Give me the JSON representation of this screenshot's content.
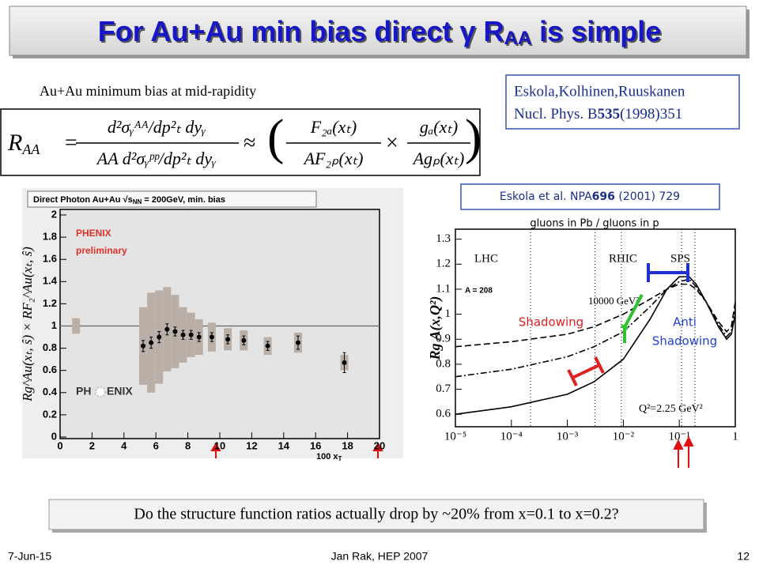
{
  "title": {
    "main": "For Au+Au min bias direct γ R",
    "sub": "AA",
    "end": " is simple"
  },
  "caption": "Au+Au minimum bias at mid-rapidity",
  "reference": {
    "line1": "Eskola,Kolhinen,Ruuskanen",
    "pre": "Nucl. Phys. B",
    "bold": "535",
    "post": "(1998)351"
  },
  "equation": {
    "lhs": "R",
    "lhs_sub": "AA",
    "eq": "=",
    "num1": "d²σᵧᴬᴬ/dp²ₜ dyᵧ",
    "den1": "AA d²σᵧᵖᵖ/dp²ₜ dyᵧ",
    "approx": "≈",
    "open": "(",
    "num2": "F₂ₐ(xₜ)",
    "den2": "AF₂ₚ(xₜ)",
    "times": "×",
    "num3": "gₐ(xₜ)",
    "den3": "Agₚ(xₜ)",
    "close": ")"
  },
  "chart_data": [
    {
      "type": "errorbar",
      "legend_title": "Direct Photon Au+Au √s",
      "legend_sub": "NN",
      "legend_end": " = 200GeV, min. bias",
      "labels": [
        "PHENIX",
        "preliminary"
      ],
      "logo": {
        "left": "PH",
        "right": "ENIX"
      },
      "ylabel": "Rg^Au(xₜ, ŝ) × RF₂^Au(xₜ, ŝ)",
      "xlabel": "100 x",
      "xlabel_sub": "T",
      "x": [
        5.2,
        5.7,
        6.2,
        6.7,
        7.2,
        7.7,
        8.2,
        8.7,
        9.5,
        10.5,
        11.5,
        13,
        14.9,
        17.8
      ],
      "values": [
        0.82,
        0.85,
        0.9,
        0.97,
        0.95,
        0.92,
        0.92,
        0.9,
        0.9,
        0.88,
        0.87,
        0.82,
        0.85,
        0.67
      ],
      "errors": [
        0.05,
        0.05,
        0.05,
        0.05,
        0.04,
        0.04,
        0.04,
        0.04,
        0.04,
        0.04,
        0.04,
        0.04,
        0.06,
        0.09
      ],
      "sys_errors": [
        0.35,
        0.45,
        0.42,
        0.38,
        0.33,
        0.25,
        0.2,
        0.16,
        0.13,
        0.1,
        0.09,
        0.08,
        0.09,
        0.07
      ],
      "norm": {
        "x": 1,
        "value": 1,
        "error": 0.07
      },
      "reference_line": 1,
      "color": "#000000",
      "box_color": "#b9afa7",
      "xlim": [
        0,
        20
      ],
      "ylim": [
        0,
        2
      ],
      "xticks": [
        0,
        2,
        4,
        6,
        8,
        10,
        12,
        14,
        16,
        18,
        20
      ],
      "yticks": [
        0,
        0.2,
        0.4,
        0.6,
        0.8,
        1,
        1.2,
        1.4,
        1.6,
        1.8,
        2
      ]
    },
    {
      "type": "line",
      "xscale": "log",
      "title": "gluons in Pb / gluons in p",
      "citation": {
        "pre": "Eskola et al. NPA",
        "bold": "696",
        "post": " (2001) 729"
      },
      "ylabel": "Rg A(x,Q²)",
      "annotations": [
        "LHC",
        "RHIC",
        "SPS",
        "A = 208",
        "10000 GeV²",
        "Q²=2.25 GeV²",
        "Shadowing",
        "Anti",
        "Shadowing"
      ],
      "x": [
        1e-05,
        0.0001,
        0.001,
        0.003,
        0.01,
        0.03,
        0.06,
        0.1,
        0.15,
        0.2,
        0.3,
        0.5,
        0.7,
        0.85,
        1
      ],
      "series": [
        {
          "color": "#000000",
          "dash": "solid",
          "values": [
            0.6,
            0.63,
            0.68,
            0.73,
            0.82,
            0.98,
            1.1,
            1.15,
            1.15,
            1.12,
            1.05,
            0.95,
            0.9,
            0.92,
            1.0
          ]
        },
        {
          "color": "#000000",
          "dash": "dashdot",
          "values": [
            0.75,
            0.78,
            0.83,
            0.87,
            0.93,
            1.03,
            1.1,
            1.13,
            1.14,
            1.11,
            1.05,
            0.96,
            0.91,
            0.93,
            1.02
          ]
        },
        {
          "color": "#000000",
          "dash": "dashed",
          "values": [
            0.87,
            0.89,
            0.92,
            0.95,
            1.0,
            1.06,
            1.1,
            1.12,
            1.12,
            1.1,
            1.05,
            0.97,
            0.93,
            0.95,
            1.05
          ]
        }
      ],
      "vlines": [
        0.00022,
        0.0031,
        0.0092,
        0.11,
        0.19
      ],
      "xlim": [
        1e-05,
        1
      ],
      "ylim": [
        0.55,
        1.34
      ],
      "xticks": [
        {
          "value": 1e-05,
          "label": "10⁻⁵"
        },
        {
          "value": 0.0001,
          "label": "10⁻⁴"
        },
        {
          "value": 0.001,
          "label": "10⁻³"
        },
        {
          "value": 0.01,
          "label": "10⁻²"
        },
        {
          "value": 0.1,
          "label": "10⁻¹"
        },
        1
      ],
      "yticks": [
        0.6,
        0.7,
        0.8,
        0.9,
        1,
        1.1,
        1.2,
        1.3
      ]
    }
  ],
  "question": "Do the structure function ratios actually drop by ~20% from x=0.1 to x=0.2?",
  "footer": {
    "date": "7-Jun-15",
    "author": "Jan Rak, HEP 2007",
    "page": "12"
  }
}
